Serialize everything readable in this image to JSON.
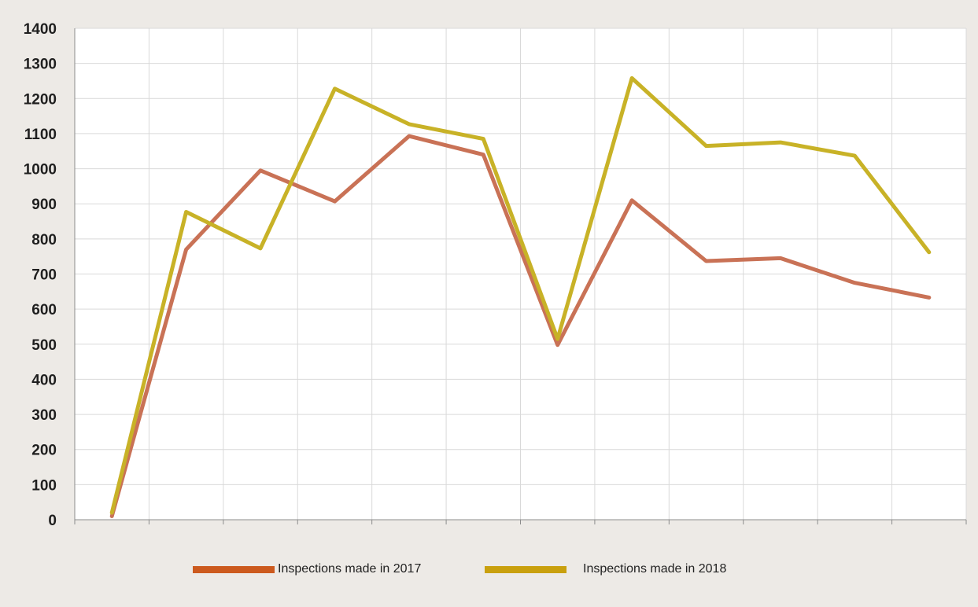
{
  "chart_data": {
    "type": "line",
    "title": "",
    "xlabel": "",
    "ylabel": "",
    "ylim": [
      0,
      1400
    ],
    "yticks": [
      0,
      100,
      200,
      300,
      400,
      500,
      600,
      700,
      800,
      900,
      1000,
      1100,
      1200,
      1300,
      1400
    ],
    "x": [
      1,
      2,
      3,
      4,
      5,
      6,
      7,
      8,
      9,
      10,
      11,
      12
    ],
    "grid": true,
    "legend_position": "bottom",
    "series": [
      {
        "name": "Inspections made in 2017",
        "color": "#c97256",
        "swatch_color": "#cc5a1e",
        "values": [
          10,
          770,
          995,
          907,
          1093,
          1040,
          498,
          910,
          737,
          745,
          675,
          633
        ]
      },
      {
        "name": "Inspections made in 2018",
        "color": "#c8b227",
        "swatch_color": "#c9a00e",
        "values": [
          20,
          877,
          773,
          1228,
          1127,
          1085,
          515,
          1258,
          1065,
          1075,
          1037,
          762
        ]
      }
    ]
  }
}
